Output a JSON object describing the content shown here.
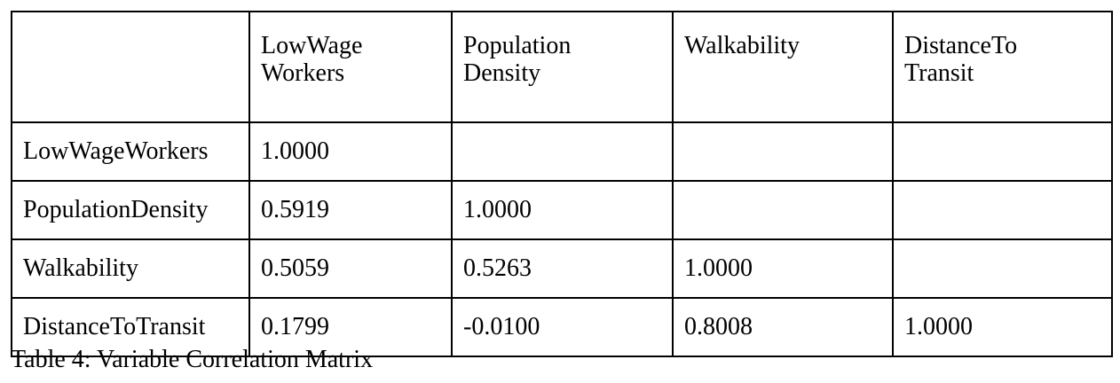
{
  "table": {
    "columns": [
      {
        "line1": "",
        "line2": ""
      },
      {
        "line1": "LowWage",
        "line2": "Workers"
      },
      {
        "line1": "Population",
        "line2": "Density"
      },
      {
        "line1": "Walkability",
        "line2": ""
      },
      {
        "line1": "DistanceTo",
        "line2": "Transit"
      }
    ],
    "rows": [
      {
        "label": "LowWageWorkers",
        "cells": [
          "1.0000",
          "",
          "",
          ""
        ]
      },
      {
        "label": "PopulationDensity",
        "cells": [
          "0.5919",
          "1.0000",
          "",
          ""
        ]
      },
      {
        "label": "Walkability",
        "cells": [
          "0.5059",
          "0.5263",
          "1.0000",
          ""
        ]
      },
      {
        "label": "DistanceToTransit",
        "cells": [
          "0.1799",
          "-0.0100",
          "0.8008",
          "1.0000"
        ]
      }
    ]
  },
  "caption": "Table 4: Variable Correlation Matrix"
}
